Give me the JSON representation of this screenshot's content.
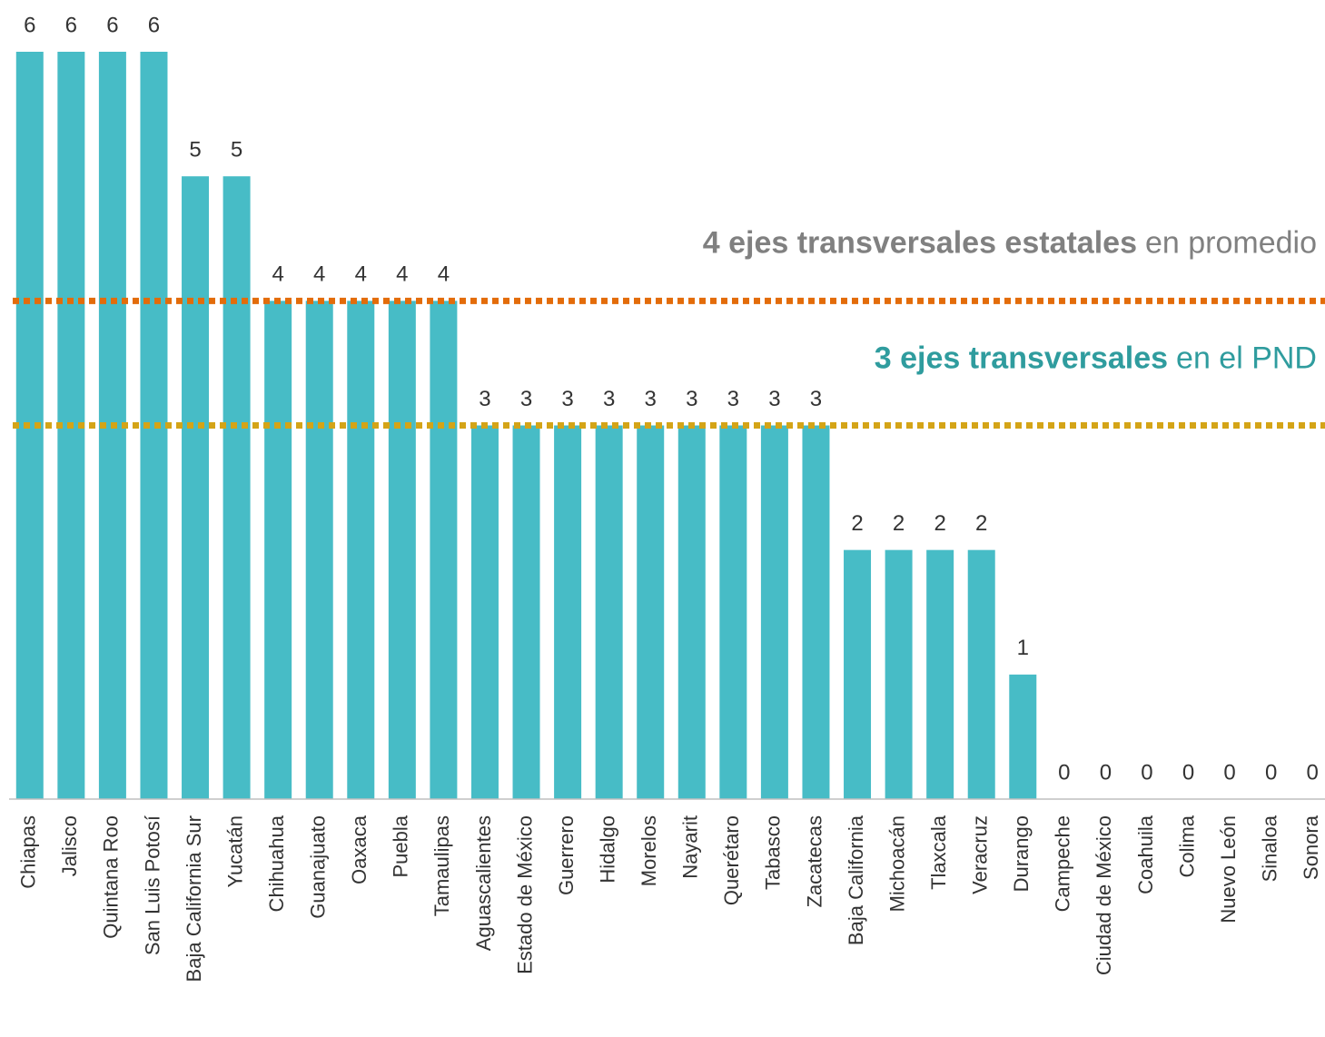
{
  "chart_data": {
    "type": "bar",
    "categories": [
      "Chiapas",
      "Jalisco",
      "Quintana Roo",
      "San Luis Potosí",
      "Baja California Sur",
      "Yucatán",
      "Chihuahua",
      "Guanajuato",
      "Oaxaca",
      "Puebla",
      "Tamaulipas",
      "Aguascalientes",
      "Estado de México",
      "Guerrero",
      "Hidalgo",
      "Morelos",
      "Nayarit",
      "Querétaro",
      "Tabasco",
      "Zacatecas",
      "Baja California",
      "Michoacán",
      "Tlaxcala",
      "Veracruz",
      "Durango",
      "Campeche",
      "Ciudad de México",
      "Coahuila",
      "Colima",
      "Nuevo León",
      "Sinaloa",
      "Sonora"
    ],
    "values": [
      6,
      6,
      6,
      6,
      5,
      5,
      4,
      4,
      4,
      4,
      4,
      3,
      3,
      3,
      3,
      3,
      3,
      3,
      3,
      3,
      2,
      2,
      2,
      2,
      1,
      0,
      0,
      0,
      0,
      0,
      0,
      0
    ],
    "color": "#47bcc6",
    "ylim": [
      0,
      6
    ],
    "reference_lines": [
      {
        "value": 4,
        "label_bold": "4 ejes transversales estatales",
        "label_rest": "en promedio",
        "color": "#e36c0a",
        "text_color": "#808080"
      },
      {
        "value": 3,
        "label_bold": "3 ejes transversales",
        "label_rest": "en el PND",
        "color": "#d4a417",
        "text_color": "#2f9c9e"
      }
    ]
  }
}
